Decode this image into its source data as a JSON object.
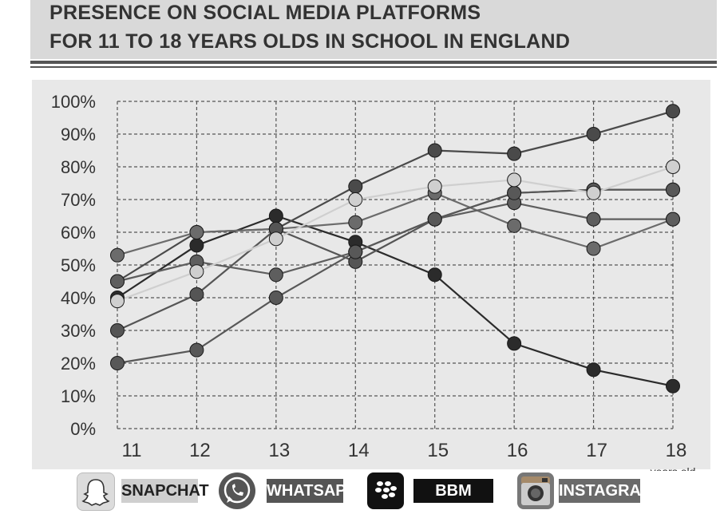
{
  "header": {
    "title_line1": "PRESENCE ON SOCIAL MEDIA PLATFORMS",
    "title_line2": "FOR 11 TO 18 YEARS OLDS IN SCHOOL IN ENGLAND"
  },
  "chart_data": {
    "type": "line",
    "title": "PRESENCE ON SOCIAL MEDIA PLATFORMS FOR 11 TO 18 YEARS OLDS IN SCHOOL IN ENGLAND",
    "x": [
      11,
      12,
      13,
      14,
      15,
      16,
      17,
      18
    ],
    "x_tick_labels": [
      "11",
      "12",
      "13",
      "14",
      "15",
      "16",
      "17",
      "18"
    ],
    "x_unit_label": "years old",
    "y_tick_labels": [
      "0%",
      "10%",
      "20%",
      "30%",
      "40%",
      "50%",
      "60%",
      "70%",
      "80%",
      "90%",
      "100%"
    ],
    "ylim": [
      0,
      100
    ],
    "xlim": [
      11,
      18
    ],
    "grid": true,
    "series": [
      {
        "color": "#2b2b2b",
        "values": [
          40,
          56,
          65,
          57,
          47,
          26,
          18,
          13
        ]
      },
      {
        "color": "#4a4a4a",
        "values": [
          45,
          60,
          61,
          74,
          85,
          84,
          90,
          97
        ]
      },
      {
        "color": "#6b6b6b",
        "values": [
          53,
          60,
          61,
          63,
          72,
          62,
          55,
          64
        ]
      },
      {
        "color": "#555555",
        "values": [
          30,
          41,
          61,
          51,
          64,
          72,
          73,
          73
        ]
      },
      {
        "color": "#5e5e5e",
        "values": [
          45,
          51,
          47,
          54,
          64,
          69,
          64,
          64
        ]
      },
      {
        "color": "#585858",
        "values": [
          20,
          24,
          40,
          54,
          64,
          72,
          73,
          73
        ]
      },
      {
        "color": "#cfcfcf",
        "values": [
          39,
          48,
          58,
          70,
          74,
          76,
          72,
          80
        ]
      }
    ]
  },
  "legend": {
    "items": [
      {
        "label": "SNAPCHAT",
        "icon": "ghost-icon",
        "label_bg": "#cfcfcf",
        "label_color": "#222222",
        "logo_bg": "#dcdcdc"
      },
      {
        "label": "WHATSAPP",
        "icon": "phone-bubble-icon",
        "label_bg": "#555555",
        "label_color": "#ffffff",
        "logo_bg": "#555555"
      },
      {
        "label": "BBM",
        "icon": "blackberry-icon",
        "label_bg": "#111111",
        "label_color": "#ffffff",
        "logo_bg": "#111111"
      },
      {
        "label": "INSTAGRAM",
        "icon": "camera-icon",
        "label_bg": "#6a6a6a",
        "label_color": "#ffffff",
        "logo_bg": "#777777"
      }
    ]
  }
}
